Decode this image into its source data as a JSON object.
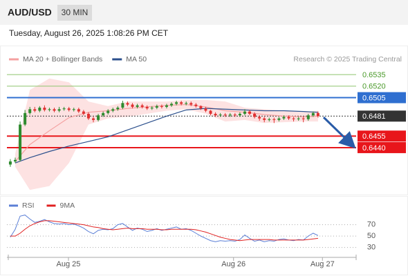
{
  "header": {
    "symbol": "AUD/USD",
    "interval": "30 MIN",
    "timestamp": "Tuesday, August 26, 2025 1:08:26 PM CET"
  },
  "chart_data": [
    {
      "type": "candlestick",
      "source": "Research © 2025 Trading Central",
      "xlim": [
        -0.7,
        70.8
      ],
      "ylim": [
        0.6378,
        0.658
      ],
      "up_color": "#2e8b2e",
      "down_color": "#e03030",
      "open": [
        0.6418,
        0.6422,
        0.6424,
        0.647,
        0.6485,
        0.649,
        0.6488,
        0.6492,
        0.6489,
        0.649,
        0.6488,
        0.649,
        0.6491,
        0.6489,
        0.649,
        0.6487,
        0.6484,
        0.6478,
        0.6476,
        0.6482,
        0.6485,
        0.6488,
        0.649,
        0.6492,
        0.6498,
        0.6496,
        0.6493,
        0.6495,
        0.6493,
        0.6491,
        0.6492,
        0.6494,
        0.6493,
        0.6495,
        0.6497,
        0.6499,
        0.6497,
        0.6498,
        0.6496,
        0.6494,
        0.6491,
        0.6488,
        0.6484,
        0.6482,
        0.6483,
        0.6482,
        0.6483,
        0.6482,
        0.6484,
        0.6487,
        0.6484,
        0.648,
        0.6478,
        0.6476,
        0.6477,
        0.6476,
        0.6478,
        0.648,
        0.6478,
        0.6477,
        0.6478,
        0.6477,
        0.6482,
        0.6485
      ],
      "high": [
        0.6425,
        0.6427,
        0.6474,
        0.6489,
        0.6493,
        0.6493,
        0.6494,
        0.6495,
        0.6492,
        0.6492,
        0.6493,
        0.6493,
        0.6493,
        0.6492,
        0.6492,
        0.6489,
        0.6486,
        0.648,
        0.6484,
        0.6487,
        0.649,
        0.6492,
        0.6494,
        0.6501,
        0.65,
        0.6498,
        0.6497,
        0.6497,
        0.6495,
        0.6494,
        0.6496,
        0.6496,
        0.6497,
        0.6499,
        0.6501,
        0.6501,
        0.65,
        0.65,
        0.6498,
        0.6495,
        0.6493,
        0.6489,
        0.6486,
        0.6485,
        0.6485,
        0.6485,
        0.6485,
        0.6486,
        0.649,
        0.6489,
        0.6486,
        0.6482,
        0.648,
        0.6479,
        0.6479,
        0.648,
        0.6482,
        0.6482,
        0.648,
        0.648,
        0.648,
        0.6484,
        0.6487,
        0.6487
      ],
      "low": [
        0.6415,
        0.642,
        0.6422,
        0.6468,
        0.6483,
        0.6486,
        0.6486,
        0.6487,
        0.6487,
        0.6486,
        0.6486,
        0.6488,
        0.6487,
        0.6487,
        0.6485,
        0.6482,
        0.6476,
        0.6473,
        0.6474,
        0.648,
        0.6483,
        0.6486,
        0.6488,
        0.649,
        0.6494,
        0.6491,
        0.6491,
        0.6491,
        0.6489,
        0.6489,
        0.649,
        0.6491,
        0.6491,
        0.6493,
        0.6495,
        0.6495,
        0.6495,
        0.6494,
        0.6492,
        0.6489,
        0.6486,
        0.6482,
        0.648,
        0.648,
        0.648,
        0.648,
        0.648,
        0.648,
        0.6482,
        0.6482,
        0.6478,
        0.6475,
        0.6473,
        0.6474,
        0.6472,
        0.6474,
        0.6476,
        0.6476,
        0.6474,
        0.6475,
        0.6473,
        0.6475,
        0.648,
        0.6479
      ],
      "close": [
        0.6422,
        0.6424,
        0.647,
        0.6485,
        0.649,
        0.6488,
        0.6492,
        0.6489,
        0.649,
        0.6488,
        0.649,
        0.6491,
        0.6489,
        0.649,
        0.6487,
        0.6484,
        0.6478,
        0.6476,
        0.6482,
        0.6485,
        0.6488,
        0.649,
        0.6492,
        0.6498,
        0.6496,
        0.6493,
        0.6495,
        0.6493,
        0.6491,
        0.6492,
        0.6494,
        0.6493,
        0.6495,
        0.6497,
        0.6499,
        0.6497,
        0.6498,
        0.6496,
        0.6494,
        0.6491,
        0.6488,
        0.6484,
        0.6482,
        0.6483,
        0.6482,
        0.6483,
        0.6482,
        0.6484,
        0.6487,
        0.6484,
        0.648,
        0.6478,
        0.6476,
        0.6477,
        0.6476,
        0.6478,
        0.648,
        0.6478,
        0.6477,
        0.6478,
        0.6477,
        0.6482,
        0.6485,
        0.6481
      ],
      "overlay_x": [
        1,
        4,
        8,
        12,
        16,
        20,
        24,
        28,
        32,
        36,
        40,
        44,
        48,
        52,
        56,
        60,
        63
      ],
      "overlays": [
        {
          "name": "MA 20 + Bollinger Bands",
          "color": "#f4a0a0",
          "band_color": "#fde2e2",
          "values": [
            0.6422,
            0.6444,
            0.6462,
            0.6479,
            0.6486,
            0.6488,
            0.6491,
            0.6493,
            0.6495,
            0.6496,
            0.6493,
            0.6488,
            0.6486,
            0.6483,
            0.6481,
            0.648,
            0.6481
          ],
          "upper": [
            0.6432,
            0.6515,
            0.653,
            0.6525,
            0.65,
            0.6494,
            0.65,
            0.65,
            0.65,
            0.6502,
            0.6502,
            0.65,
            0.6492,
            0.649,
            0.6488,
            0.6486,
            0.6488
          ],
          "lower": [
            0.6415,
            0.6385,
            0.639,
            0.642,
            0.647,
            0.6478,
            0.648,
            0.6484,
            0.6488,
            0.649,
            0.6484,
            0.6474,
            0.6476,
            0.6472,
            0.6473,
            0.6474,
            0.6474
          ]
        },
        {
          "name": "MA 50",
          "color": "#2b4f8c",
          "values": [
            0.642,
            0.6427,
            0.6435,
            0.6442,
            0.6448,
            0.6454,
            0.6463,
            0.6472,
            0.6481,
            0.6489,
            0.6491,
            0.649,
            0.6489,
            0.6488,
            0.6488,
            0.6487,
            0.6486
          ]
        }
      ],
      "levels": [
        {
          "value": 0.6535,
          "color": "#8cc46c",
          "boxed": false,
          "dashed": false
        },
        {
          "value": 0.652,
          "label": "0.6520",
          "color": "#8cc46c",
          "boxed": false,
          "dashed": false
        },
        {
          "value": 0.6505,
          "color": "#2f6fd0",
          "boxed": true,
          "dashed": false
        },
        {
          "value": 0.6481,
          "color": "#333333",
          "boxed": true,
          "dashed": true
        },
        {
          "value": 0.6455,
          "color": "#e8161b",
          "boxed": true,
          "dashed": false
        },
        {
          "value": 0.644,
          "label": "0.6440",
          "color": "#e8161b",
          "boxed": true,
          "dashed": false
        }
      ]
    },
    {
      "type": "line",
      "xlim": [
        -0.7,
        70.8
      ],
      "ylim": [
        15,
        95
      ],
      "yticks": [
        70,
        50,
        30
      ],
      "grid": true,
      "xticks": [
        {
          "value": 11.9,
          "label": "Aug 25"
        },
        {
          "value": 45.7,
          "label": "Aug 26"
        },
        {
          "value": 63.9,
          "label": "Aug 27"
        }
      ],
      "series": [
        {
          "name": "RSI",
          "color": "#5b7fd6",
          "values": [
            48,
            62,
            85,
            87,
            80,
            74,
            76,
            79,
            75,
            72,
            71,
            72,
            70,
            71,
            68,
            64,
            58,
            54,
            60,
            62,
            61,
            63,
            70,
            72,
            66,
            60,
            64,
            62,
            58,
            60,
            63,
            60,
            62,
            64,
            66,
            62,
            63,
            60,
            55,
            50,
            46,
            42,
            40,
            42,
            41,
            42,
            41,
            44,
            52,
            46,
            41,
            43,
            40,
            42,
            41,
            44,
            45,
            43,
            42,
            44,
            43,
            50,
            55,
            51
          ]
        },
        {
          "name": "9MA",
          "color": "#e02020",
          "values": [
            50,
            50,
            55,
            62,
            68,
            72,
            75,
            77,
            77,
            76,
            75,
            74,
            73,
            72,
            71,
            70,
            68,
            66,
            65,
            63,
            62,
            61,
            62,
            63,
            64,
            63,
            63,
            63,
            62,
            62,
            62,
            61,
            61,
            62,
            62,
            62,
            62,
            62,
            61,
            59,
            57,
            54,
            51,
            48,
            46,
            44,
            43,
            42,
            43,
            44,
            44,
            44,
            44,
            44,
            43,
            43,
            43,
            43,
            43,
            43,
            43,
            44,
            45,
            46
          ]
        }
      ]
    }
  ]
}
